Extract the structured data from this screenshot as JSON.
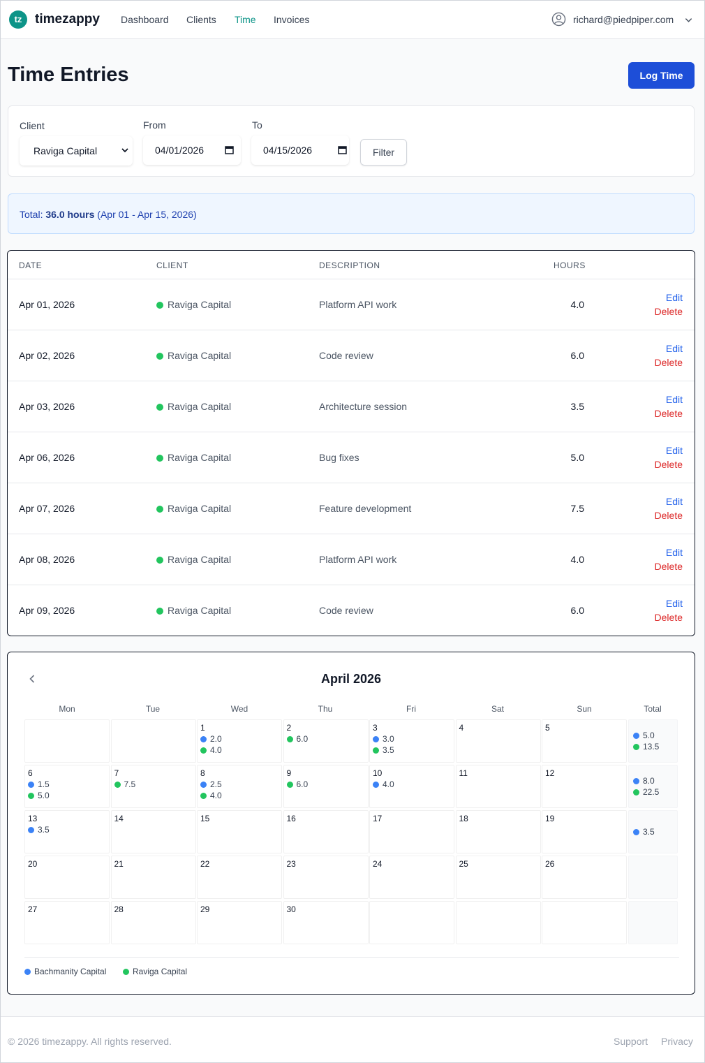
{
  "header": {
    "logo_text": "tz",
    "brand": "timezappy",
    "nav": [
      {
        "label": "Dashboard",
        "active": false
      },
      {
        "label": "Clients",
        "active": false
      },
      {
        "label": "Time",
        "active": true
      },
      {
        "label": "Invoices",
        "active": false
      }
    ],
    "user_email": "richard@piedpiper.com",
    "user_icon": "user-circle-icon",
    "menu_icon": "chevron-down-icon"
  },
  "page": {
    "title": "Time Entries",
    "log_time_label": "Log Time"
  },
  "filters": {
    "client_label": "Client",
    "client_value": "Raviga Capital",
    "from_label": "From",
    "from_value": "04/01/2026",
    "to_label": "To",
    "to_value": "04/15/2026",
    "filter_label": "Filter"
  },
  "total": {
    "prefix": "Total:",
    "hours": "36.0 hours",
    "range": "(Apr 01 - Apr 15, 2026)"
  },
  "table": {
    "columns": [
      "DATE",
      "CLIENT",
      "DESCRIPTION",
      "HOURS"
    ],
    "rows": [
      {
        "date": "Apr 01, 2026",
        "client": "Raviga Capital",
        "description": "Platform API work",
        "hours": "4.0",
        "edit": "Edit",
        "delete": "Delete"
      },
      {
        "date": "Apr 02, 2026",
        "client": "Raviga Capital",
        "description": "Code review",
        "hours": "6.0",
        "edit": "Edit",
        "delete": "Delete"
      },
      {
        "date": "Apr 03, 2026",
        "client": "Raviga Capital",
        "description": "Architecture session",
        "hours": "3.5",
        "edit": "Edit",
        "delete": "Delete"
      },
      {
        "date": "Apr 06, 2026",
        "client": "Raviga Capital",
        "description": "Bug fixes",
        "hours": "5.0",
        "edit": "Edit",
        "delete": "Delete"
      },
      {
        "date": "Apr 07, 2026",
        "client": "Raviga Capital",
        "description": "Feature development",
        "hours": "7.5",
        "edit": "Edit",
        "delete": "Delete"
      },
      {
        "date": "Apr 08, 2026",
        "client": "Raviga Capital",
        "description": "Platform API work",
        "hours": "4.0",
        "edit": "Edit",
        "delete": "Delete"
      },
      {
        "date": "Apr 09, 2026",
        "client": "Raviga Capital",
        "description": "Code review",
        "hours": "6.0",
        "edit": "Edit",
        "delete": "Delete"
      }
    ]
  },
  "calendar": {
    "title": "April 2026",
    "prev_icon": "chevron-left-icon",
    "weekdays": [
      "Mon",
      "Tue",
      "Wed",
      "Thu",
      "Fri",
      "Sat",
      "Sun"
    ],
    "total_label": "Total",
    "weeks": [
      {
        "days": [
          {
            "num": "",
            "entries": []
          },
          {
            "num": "",
            "entries": []
          },
          {
            "num": "1",
            "entries": [
              {
                "client": "b",
                "hours": "2.0"
              },
              {
                "client": "r",
                "hours": "4.0"
              }
            ]
          },
          {
            "num": "2",
            "entries": [
              {
                "client": "r",
                "hours": "6.0"
              }
            ]
          },
          {
            "num": "3",
            "entries": [
              {
                "client": "b",
                "hours": "3.0"
              },
              {
                "client": "r",
                "hours": "3.5"
              }
            ]
          },
          {
            "num": "4",
            "entries": []
          },
          {
            "num": "5",
            "entries": []
          }
        ],
        "totals": [
          {
            "client": "b",
            "hours": "5.0"
          },
          {
            "client": "r",
            "hours": "13.5"
          }
        ]
      },
      {
        "days": [
          {
            "num": "6",
            "entries": [
              {
                "client": "b",
                "hours": "1.5"
              },
              {
                "client": "r",
                "hours": "5.0"
              }
            ]
          },
          {
            "num": "7",
            "entries": [
              {
                "client": "r",
                "hours": "7.5"
              }
            ]
          },
          {
            "num": "8",
            "entries": [
              {
                "client": "b",
                "hours": "2.5"
              },
              {
                "client": "r",
                "hours": "4.0"
              }
            ]
          },
          {
            "num": "9",
            "entries": [
              {
                "client": "r",
                "hours": "6.0"
              }
            ]
          },
          {
            "num": "10",
            "entries": [
              {
                "client": "b",
                "hours": "4.0"
              }
            ]
          },
          {
            "num": "11",
            "entries": []
          },
          {
            "num": "12",
            "entries": []
          }
        ],
        "totals": [
          {
            "client": "b",
            "hours": "8.0"
          },
          {
            "client": "r",
            "hours": "22.5"
          }
        ]
      },
      {
        "days": [
          {
            "num": "13",
            "entries": [
              {
                "client": "b",
                "hours": "3.5"
              }
            ]
          },
          {
            "num": "14",
            "entries": []
          },
          {
            "num": "15",
            "entries": []
          },
          {
            "num": "16",
            "entries": []
          },
          {
            "num": "17",
            "entries": []
          },
          {
            "num": "18",
            "entries": []
          },
          {
            "num": "19",
            "entries": []
          }
        ],
        "totals": [
          {
            "client": "b",
            "hours": "3.5"
          }
        ]
      },
      {
        "days": [
          {
            "num": "20",
            "entries": []
          },
          {
            "num": "21",
            "entries": []
          },
          {
            "num": "22",
            "entries": []
          },
          {
            "num": "23",
            "entries": []
          },
          {
            "num": "24",
            "entries": []
          },
          {
            "num": "25",
            "entries": []
          },
          {
            "num": "26",
            "entries": []
          }
        ],
        "totals": []
      },
      {
        "days": [
          {
            "num": "27",
            "entries": []
          },
          {
            "num": "28",
            "entries": []
          },
          {
            "num": "29",
            "entries": []
          },
          {
            "num": "30",
            "entries": []
          },
          {
            "num": "",
            "entries": []
          },
          {
            "num": "",
            "entries": []
          },
          {
            "num": "",
            "entries": []
          }
        ],
        "totals": []
      }
    ],
    "legend": [
      {
        "key": "b",
        "name": "Bachmanity Capital",
        "color": "#3b82f6"
      },
      {
        "key": "r",
        "name": "Raviga Capital",
        "color": "#22c55e"
      }
    ]
  },
  "footer": {
    "copyright": "© 2026 timezappy. All rights reserved.",
    "links": [
      "Support",
      "Privacy"
    ]
  },
  "colors": {
    "brand": "#0d9488",
    "primary_button": "#1d4ed8",
    "link": "#2563eb",
    "danger": "#dc2626",
    "raviga": "#22c55e",
    "bachmanity": "#3b82f6"
  }
}
